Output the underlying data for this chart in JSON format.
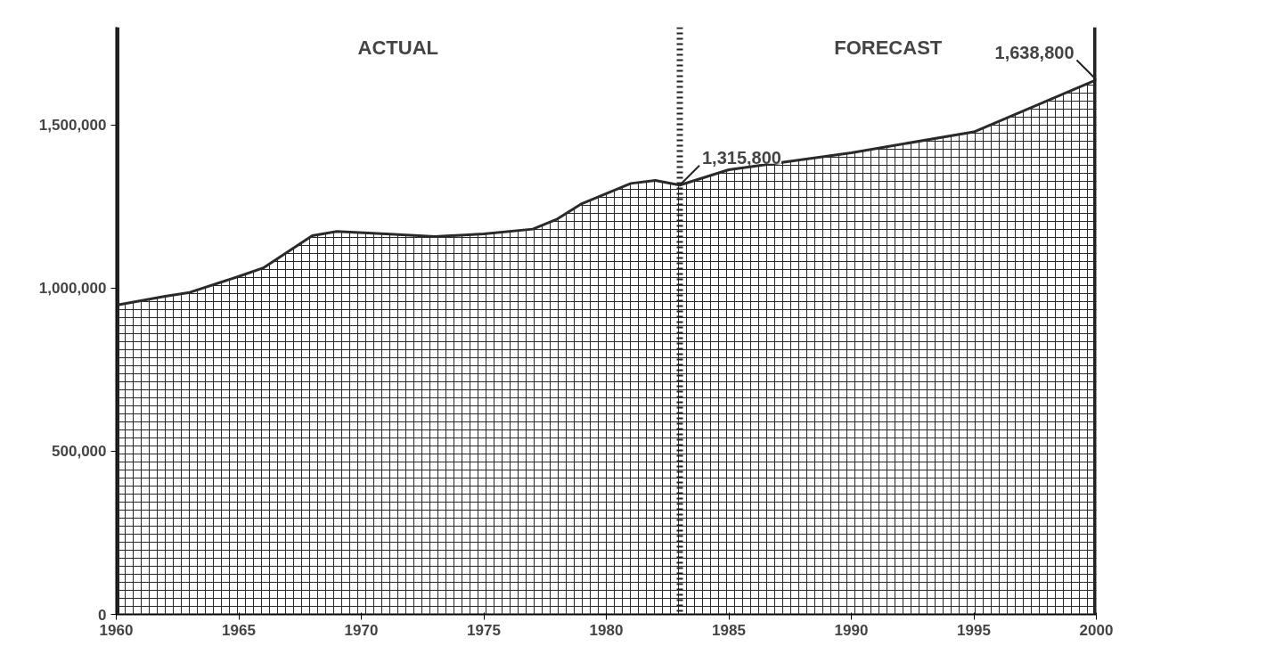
{
  "chart_data": {
    "type": "area",
    "x": [
      1960,
      1962,
      1963,
      1965,
      1966,
      1968,
      1969,
      1971,
      1973,
      1975,
      1977,
      1978,
      1979,
      1981,
      1982,
      1983,
      1985,
      1990,
      1995,
      2000
    ],
    "series": [
      {
        "color": "#2a2a2a",
        "values": [
          948000,
          975000,
          987000,
          1036000,
          1062000,
          1161000,
          1174000,
          1166000,
          1158000,
          1166000,
          1181000,
          1212000,
          1259000,
          1321000,
          1330000,
          1315800,
          1363000,
          1415000,
          1479000,
          1638800
        ]
      }
    ],
    "xlim": [
      1960,
      2000
    ],
    "xticks": [
      1960,
      1965,
      1970,
      1975,
      1980,
      1985,
      1990,
      1995,
      2000
    ],
    "ylim": [
      0,
      1800000
    ],
    "yticks": [
      {
        "value": 0,
        "label": "0"
      },
      {
        "value": 500000,
        "label": "500,000"
      },
      {
        "value": 1000000,
        "label": "1,000,000"
      },
      {
        "value": 1500000,
        "label": "1,500,000"
      }
    ],
    "ref_lines": [
      {
        "axis": "x",
        "value": 1983,
        "label": null,
        "color": "#222222",
        "line_style": "dotted"
      }
    ],
    "annotations": [
      "ACTUAL",
      "FORECAST",
      {
        "text": "1,315,800",
        "x": 1983,
        "y": 1315800
      },
      {
        "text": "1,638,800",
        "x": 2000,
        "y": 1638800
      }
    ],
    "grid": false
  }
}
